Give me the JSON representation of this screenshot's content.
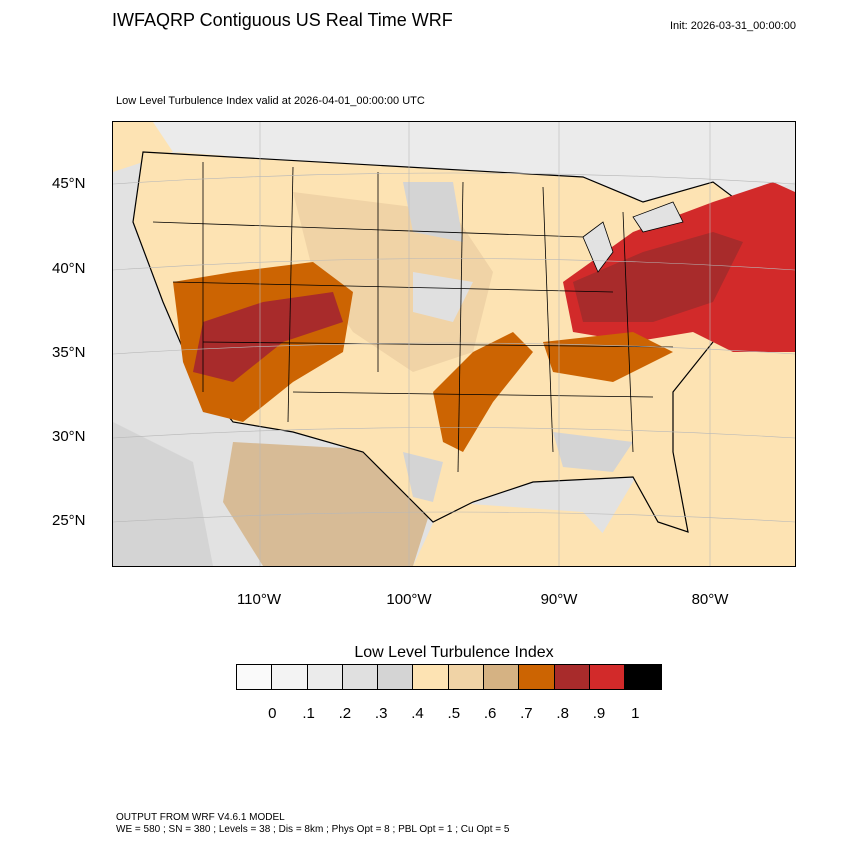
{
  "title": "IWFAQRP Contiguous US Real Time WRF",
  "init_label": "Init: 2026-03-31_00:00:00",
  "map": {
    "subtitle": "Low Level Turbulence Index valid at 2026-04-01_00:00:00 UTC",
    "lat_labels": [
      "45°N",
      "40°N",
      "35°N",
      "30°N",
      "25°N"
    ],
    "lon_labels": [
      "110°W",
      "100°W",
      "90°W",
      "80°W"
    ]
  },
  "colorbar": {
    "title": "Low Level Turbulence Index",
    "colors": [
      "#fafafa",
      "#f3f3f3",
      "#ebebeb",
      "#e0e0e0",
      "#d4d4d4",
      "#fde3b3",
      "#f0d3a6",
      "#d5b283",
      "#cc6402",
      "#a82b2b",
      "#d22a2a",
      "#000000"
    ],
    "tick_labels": [
      "0",
      ".1",
      ".2",
      ".3",
      ".4",
      ".5",
      ".6",
      ".7",
      ".8",
      ".9",
      "1"
    ]
  },
  "footer": {
    "line1": "OUTPUT FROM WRF V4.6.1 MODEL",
    "line2": "WE = 580 ; SN = 380 ; Levels = 38 ; Dis = 8km ; Phys Opt = 8 ; PBL Opt = 1 ; Cu Opt = 5"
  }
}
